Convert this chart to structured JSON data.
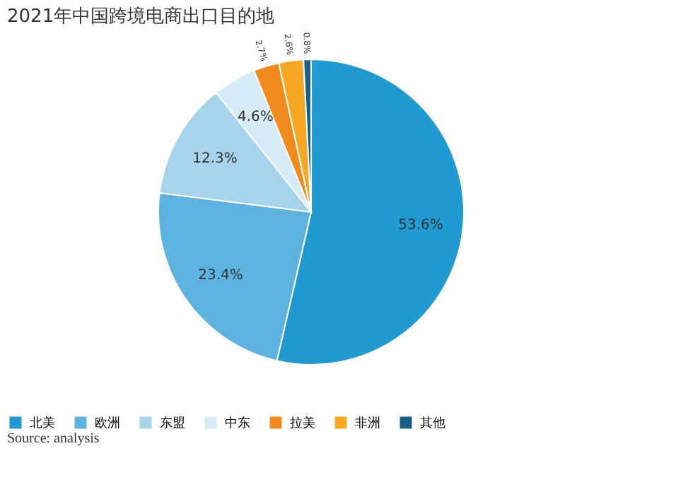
{
  "chart_data": {
    "type": "pie",
    "title": "2021年中国跨境电商出口目的地",
    "categories": [
      "北美",
      "欧洲",
      "东盟",
      "中东",
      "拉美",
      "非洲",
      "其他"
    ],
    "values": [
      53.6,
      23.4,
      12.3,
      4.6,
      2.7,
      2.6,
      0.8
    ],
    "value_labels": [
      "53.6%",
      "23.4%",
      "12.3%",
      "4.6%",
      "2.7%",
      "2.6%",
      "0.8%"
    ],
    "colors": [
      "#1f9bd1",
      "#5cb3e0",
      "#a6d4ec",
      "#d5ebf6",
      "#f28b1e",
      "#f7a823",
      "#1a5f8a"
    ],
    "legend": "bottom",
    "annotations": [
      "Source: analysis"
    ]
  }
}
